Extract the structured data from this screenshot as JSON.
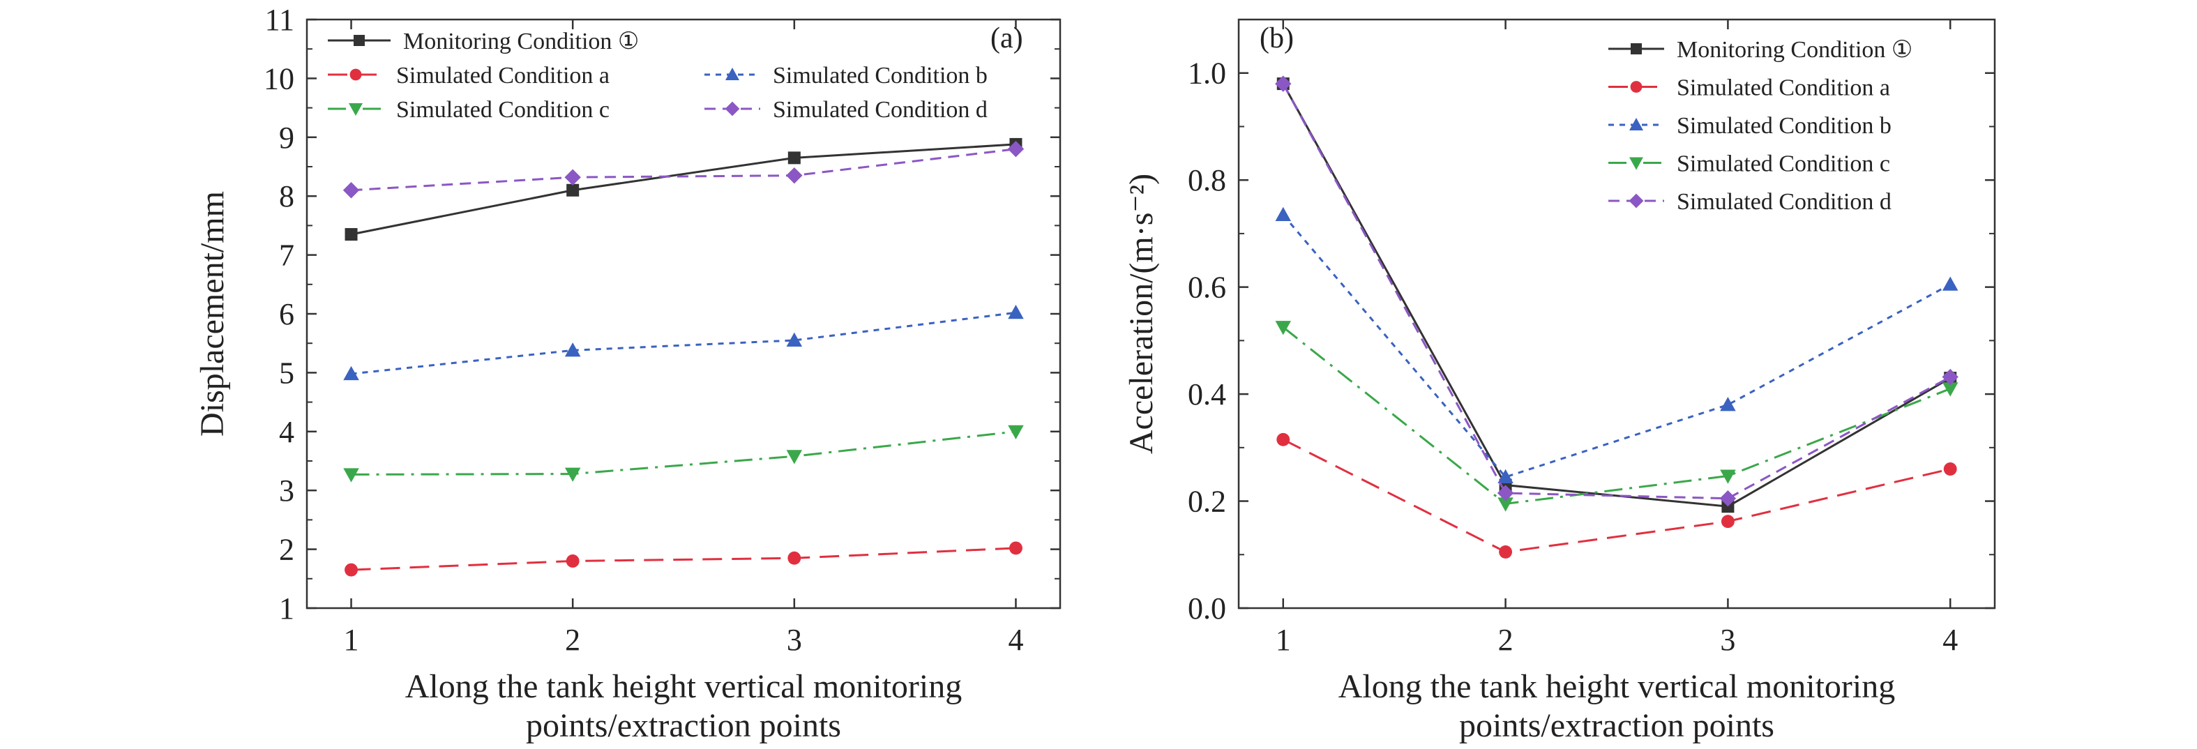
{
  "chart_data": [
    {
      "type": "line",
      "panel_label": "(a)",
      "xlabel_lines": [
        "Along the tank height vertical monitoring",
        "points/extraction points"
      ],
      "ylabel": "Displacement/mm",
      "categories": [
        "1",
        "2",
        "3",
        "4"
      ],
      "x": [
        1,
        2,
        3,
        4
      ],
      "xlim": [
        0.8,
        4.2
      ],
      "ylim": [
        1,
        11
      ],
      "yticks": [
        1,
        2,
        3,
        4,
        5,
        6,
        7,
        8,
        9,
        10,
        11
      ],
      "legend_position": "top",
      "legend_columns": 2,
      "series": [
        {
          "name": "Monitoring Condition  ①",
          "values": [
            7.35,
            8.1,
            8.65,
            8.88
          ],
          "color": "#333333",
          "marker": "square",
          "dash": "solid"
        },
        {
          "name": "Simulated Condition a",
          "values": [
            1.65,
            1.8,
            1.85,
            2.02
          ],
          "color": "#e03040",
          "marker": "circle",
          "dash": "long-dash"
        },
        {
          "name": "Simulated Condition b",
          "values": [
            4.98,
            5.38,
            5.55,
            6.02
          ],
          "color": "#3a62c0",
          "marker": "triangle-up",
          "dash": "short-dash"
        },
        {
          "name": "Simulated Condition c",
          "values": [
            3.27,
            3.28,
            3.58,
            4.0
          ],
          "color": "#3aa84a",
          "marker": "triangle-down",
          "dash": "dash-dot"
        },
        {
          "name": "Simulated Condition d",
          "values": [
            8.1,
            8.32,
            8.35,
            8.8
          ],
          "color": "#8b57c4",
          "marker": "diamond",
          "dash": "dashed"
        }
      ]
    },
    {
      "type": "line",
      "panel_label": "(b)",
      "xlabel_lines": [
        "Along the tank height vertical monitoring",
        "points/extraction points"
      ],
      "ylabel": "Acceleration/(m·s⁻²)",
      "categories": [
        "1",
        "2",
        "3",
        "4"
      ],
      "x": [
        1,
        2,
        3,
        4
      ],
      "xlim": [
        0.8,
        4.2
      ],
      "ylim": [
        0.0,
        1.1
      ],
      "yticks": [
        0.0,
        0.2,
        0.4,
        0.6,
        0.8,
        1.0
      ],
      "ytick_labels": [
        "0.0",
        "0.2",
        "0.4",
        "0.6",
        "0.8",
        "1.0"
      ],
      "legend_position": "top-right",
      "legend_columns": 1,
      "series": [
        {
          "name": "Monitoring Condition  ①",
          "values": [
            0.98,
            0.23,
            0.19,
            0.43
          ],
          "color": "#333333",
          "marker": "square",
          "dash": "solid"
        },
        {
          "name": "Simulated Condition a",
          "values": [
            0.315,
            0.105,
            0.162,
            0.26
          ],
          "color": "#e03040",
          "marker": "circle",
          "dash": "long-dash"
        },
        {
          "name": "Simulated Condition b",
          "values": [
            0.735,
            0.245,
            0.38,
            0.605
          ],
          "color": "#3a62c0",
          "marker": "triangle-up",
          "dash": "short-dash"
        },
        {
          "name": "Simulated Condition c",
          "values": [
            0.525,
            0.195,
            0.247,
            0.41
          ],
          "color": "#3aa84a",
          "marker": "triangle-down",
          "dash": "dash-dot"
        },
        {
          "name": "Simulated Condition d",
          "values": [
            0.98,
            0.215,
            0.205,
            0.432
          ],
          "color": "#8b57c4",
          "marker": "diamond",
          "dash": "dashed"
        }
      ]
    }
  ]
}
